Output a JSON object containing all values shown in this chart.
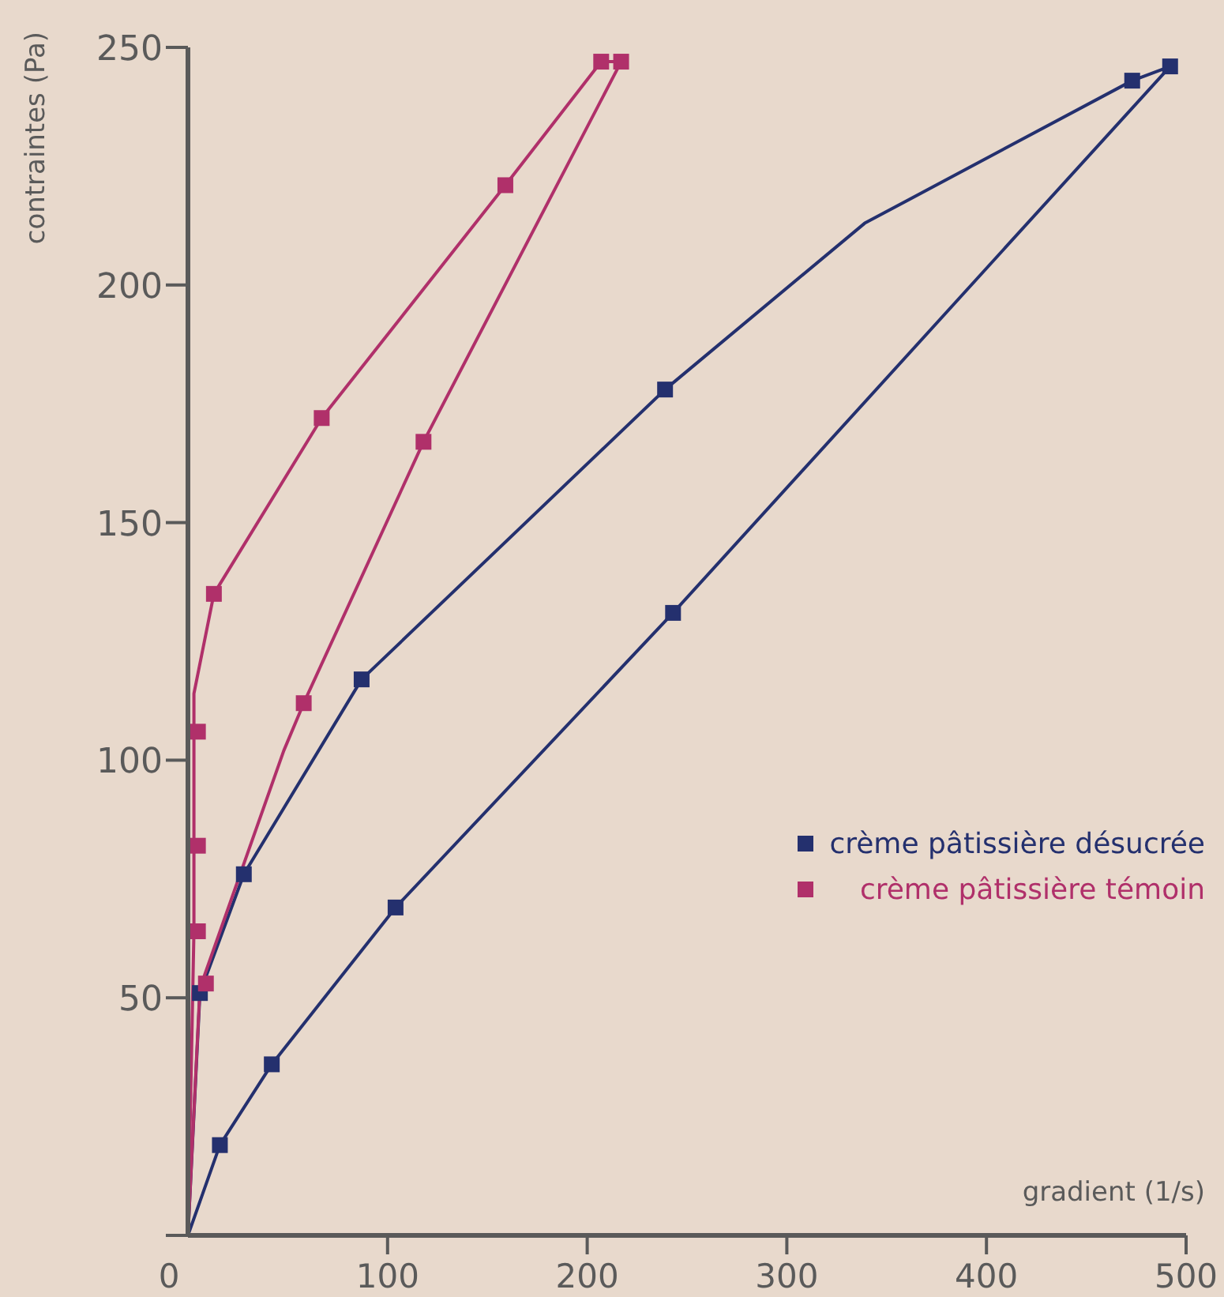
{
  "chart_data": {
    "type": "line",
    "xlabel": "gradient (1/s)",
    "ylabel": "contraintes (Pa)",
    "xlim": [
      0,
      500
    ],
    "ylim": [
      0,
      250
    ],
    "xticks": [
      0,
      100,
      200,
      300,
      400,
      500
    ],
    "yticks": [
      {
        "value": 0,
        "label": null
      },
      50,
      100,
      150,
      200,
      250
    ],
    "grid": false,
    "legend": "right",
    "marker": "square",
    "series": [
      {
        "marker": "none",
        "color": "#24306e",
        "x": [
          0,
          16,
          42,
          104,
          243,
          492
        ],
        "values": [
          0,
          19,
          36,
          69,
          131,
          246
        ]
      },
      {
        "marker": "none",
        "color": "#24306e",
        "x": [
          0,
          6,
          28,
          87,
          239,
          339,
          473,
          492
        ],
        "values": [
          0,
          51,
          76,
          117,
          178,
          213,
          243,
          246
        ]
      },
      {
        "marker": "none",
        "color": "#b0306a",
        "x": [
          0,
          6,
          48,
          58,
          118,
          217
        ],
        "values": [
          0,
          52,
          102,
          112,
          167,
          247
        ]
      },
      {
        "marker": "none",
        "color": "#b0306a",
        "x": [
          0,
          3,
          3,
          3,
          3,
          13,
          67,
          159,
          207,
          217
        ],
        "values": [
          0,
          64,
          82,
          106,
          114,
          135,
          172,
          221,
          247,
          247
        ]
      },
      {
        "type": "scatter",
        "name": "crème pâtissière désucrée",
        "color": "#24306e",
        "x": [
          16,
          42,
          104,
          243,
          492,
          473,
          239,
          87,
          28,
          6
        ],
        "values": [
          19,
          36,
          69,
          131,
          246,
          243,
          178,
          117,
          76,
          51
        ]
      },
      {
        "type": "scatter",
        "name": "crème pâtissière témoin",
        "color": "#b0306a",
        "x": [
          9,
          58,
          118,
          217,
          207,
          159,
          67,
          13,
          5,
          5,
          5
        ],
        "values": [
          53,
          112,
          167,
          247,
          247,
          221,
          172,
          135,
          106,
          82,
          64
        ]
      }
    ]
  }
}
